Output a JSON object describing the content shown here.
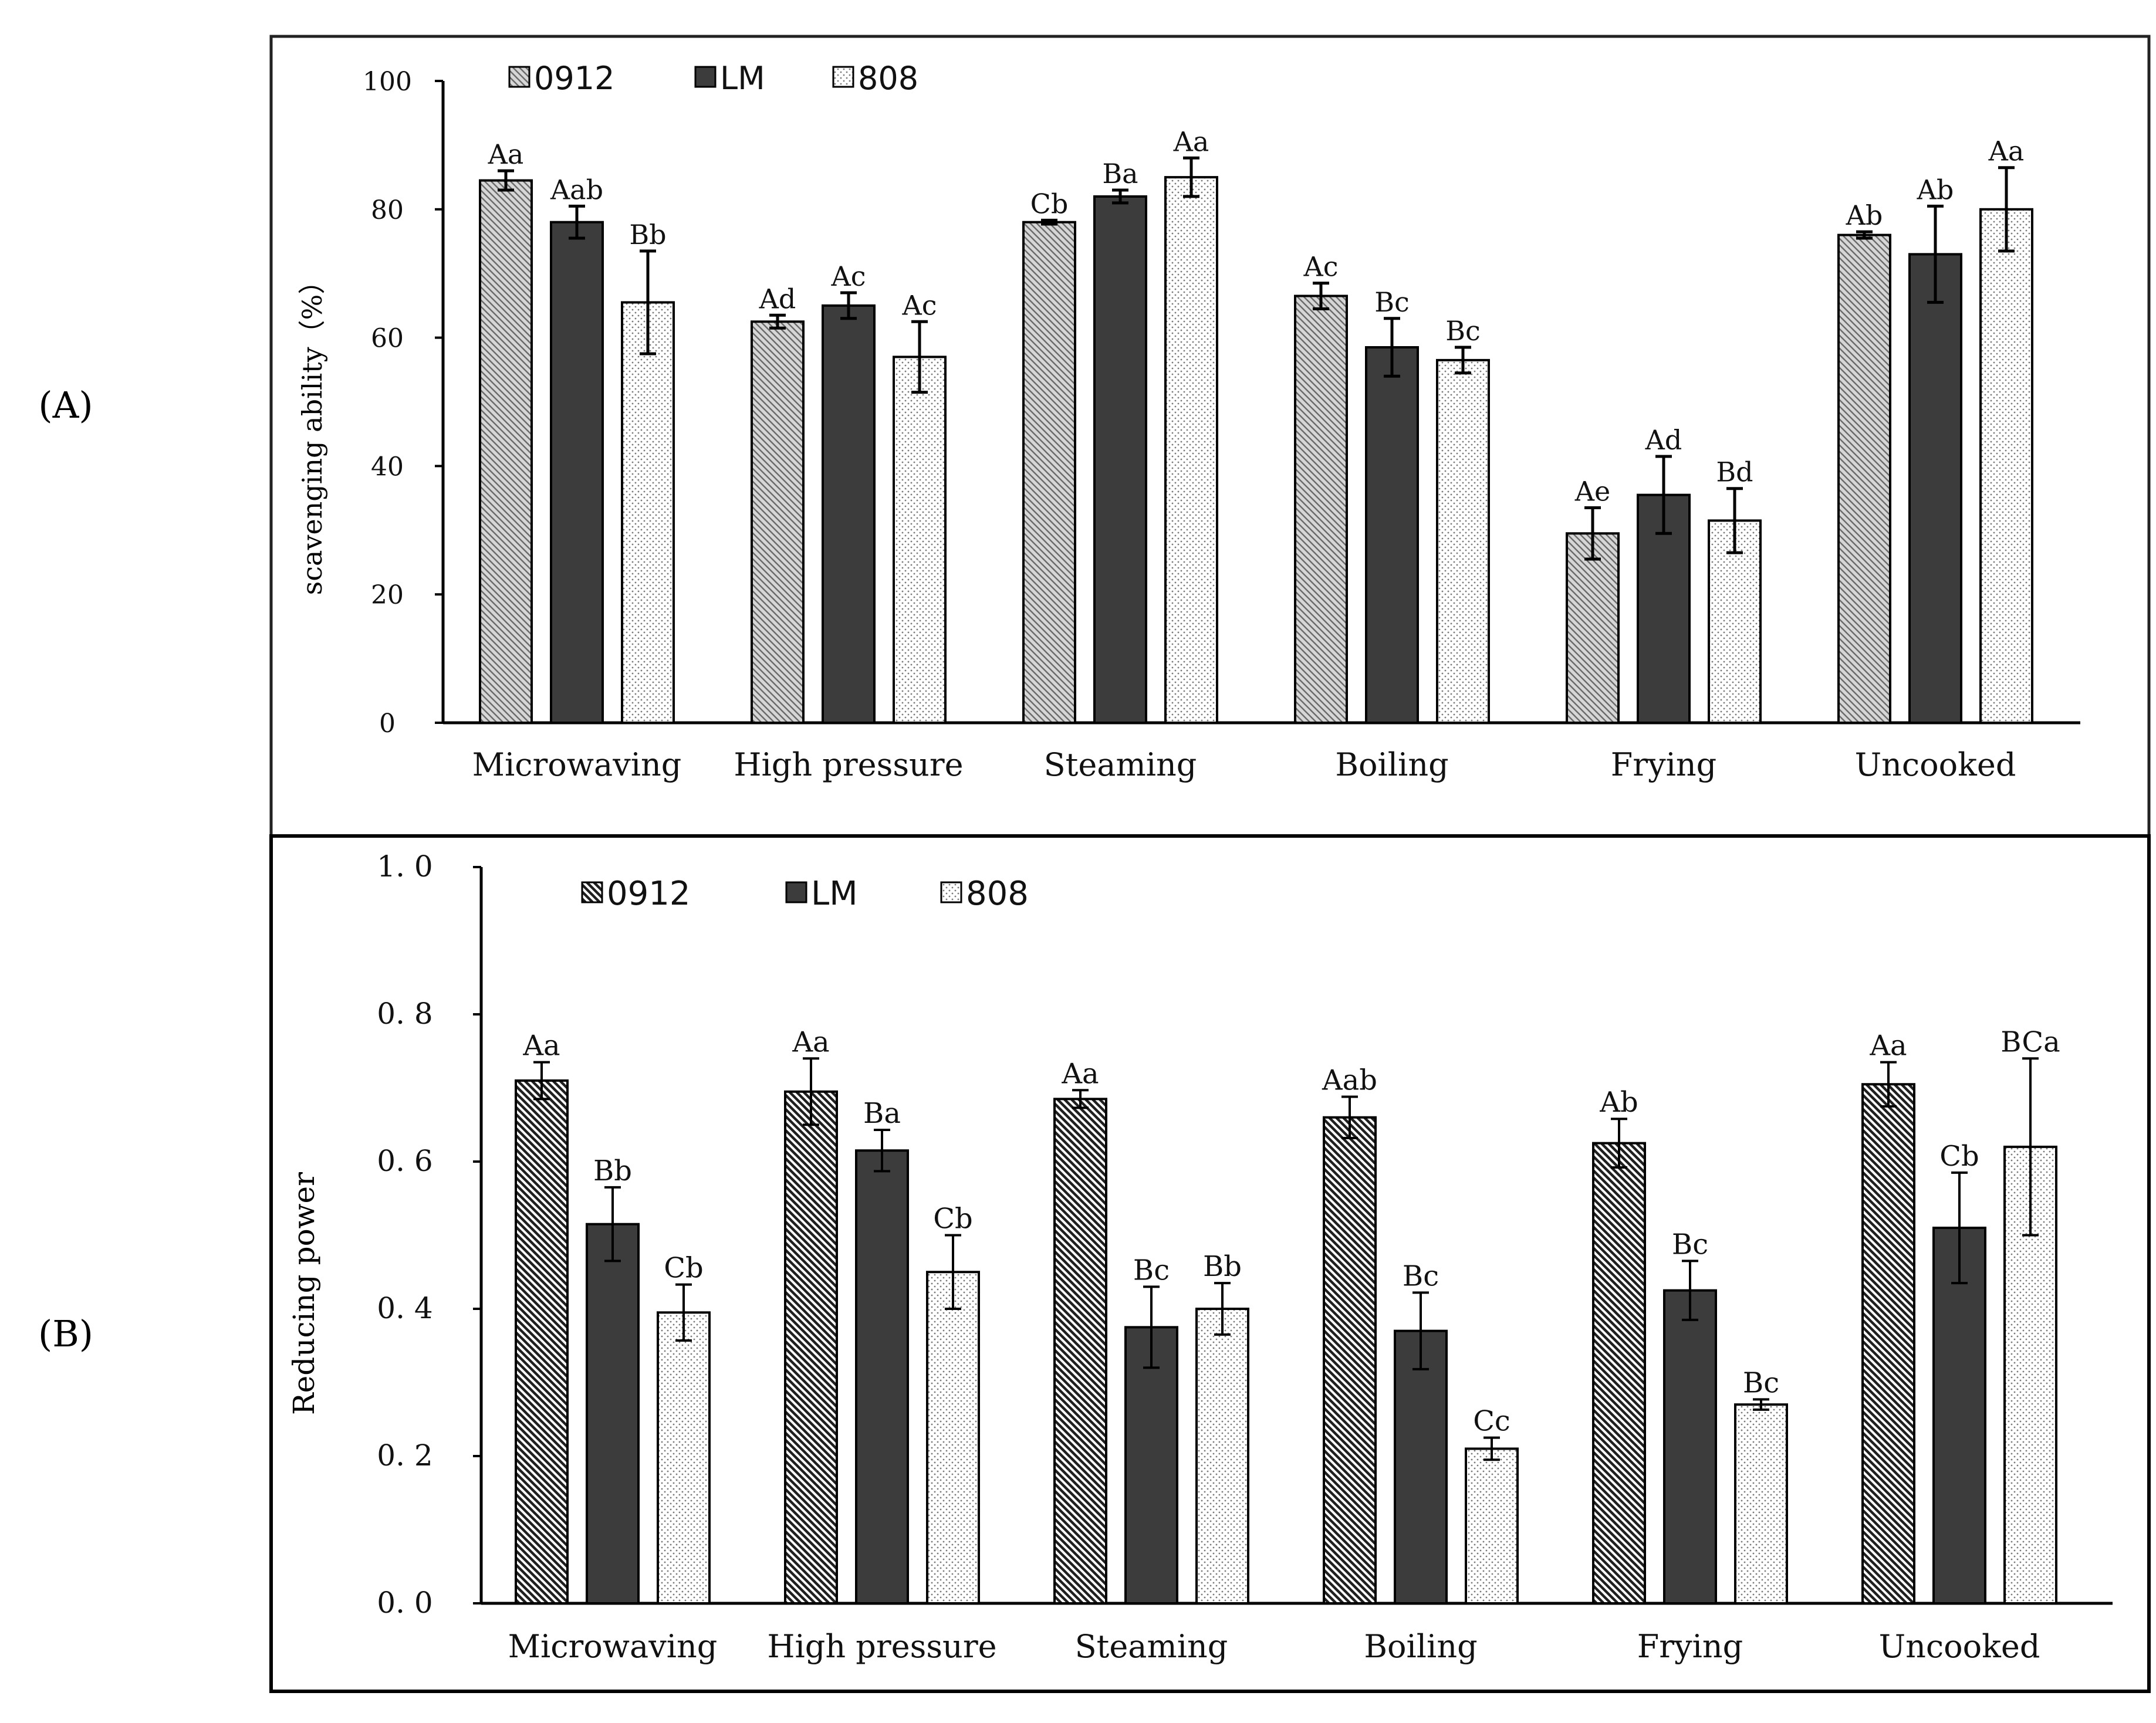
{
  "panel_labels": [
    "(A)",
    "(B)"
  ],
  "colors": {
    "series_0912": "#c9c9c9",
    "series_LM": "#3c3c3c",
    "series_808": "#f4f4f4",
    "axis": "#000000"
  },
  "chart_data": [
    {
      "type": "bar",
      "panel": "A",
      "title": "",
      "xlabel": "",
      "ylabel": "scavenging ability（%）",
      "ylim": [
        0,
        100
      ],
      "yticks": [
        "0",
        "20",
        "40",
        "60",
        "80",
        "100"
      ],
      "categories": [
        "Microwaving",
        "High pressure",
        "Steaming",
        "Boiling",
        "Frying",
        "Uncooked"
      ],
      "legend": [
        "0912",
        "LM",
        "808"
      ],
      "legend_position": "top-left",
      "series": [
        {
          "name": "0912",
          "pattern": "hatch",
          "values": [
            84.5,
            62.5,
            78.0,
            66.5,
            29.5,
            76.0
          ],
          "errors": [
            1.5,
            1.0,
            0.3,
            2.0,
            4.0,
            0.5
          ],
          "labels": [
            "Aa",
            "Ad",
            "Cb",
            "Ac",
            "Ae",
            "Ab"
          ]
        },
        {
          "name": "LM",
          "pattern": "solid",
          "values": [
            78.0,
            65.0,
            82.0,
            58.5,
            35.5,
            73.0
          ],
          "errors": [
            2.5,
            2.0,
            1.0,
            4.5,
            6.0,
            7.5
          ],
          "labels": [
            "Aab",
            "Ac",
            "Ba",
            "Bc",
            "Ad",
            "Ab"
          ]
        },
        {
          "name": "808",
          "pattern": "dots",
          "values": [
            65.5,
            57.0,
            85.0,
            56.5,
            31.5,
            80.0
          ],
          "errors": [
            8.0,
            5.5,
            3.0,
            2.0,
            5.0,
            6.5
          ],
          "labels": [
            "Bb",
            "Ac",
            "Aa",
            "Bc",
            "Bd",
            "Aa"
          ]
        }
      ]
    },
    {
      "type": "bar",
      "panel": "B",
      "title": "",
      "xlabel": "",
      "ylabel": "Reducing power",
      "ylim": [
        0,
        1.0
      ],
      "yticks": [
        "0. 0",
        "0. 2",
        "0. 4",
        "0. 6",
        "0. 8",
        "1. 0"
      ],
      "categories": [
        "Microwaving",
        "High pressure",
        "Steaming",
        "Boiling",
        "Frying",
        "Uncooked"
      ],
      "legend": [
        "0912",
        "LM",
        "808"
      ],
      "legend_position": "top-left",
      "series": [
        {
          "name": "0912",
          "pattern": "hatch",
          "values": [
            0.71,
            0.695,
            0.685,
            0.66,
            0.625,
            0.705
          ],
          "errors": [
            0.025,
            0.045,
            0.012,
            0.028,
            0.033,
            0.03
          ],
          "labels": [
            "Aa",
            "Aa",
            "Aa",
            "Aab",
            "Ab",
            "Aa"
          ]
        },
        {
          "name": "LM",
          "pattern": "solid",
          "values": [
            0.515,
            0.615,
            0.375,
            0.37,
            0.425,
            0.51
          ],
          "errors": [
            0.05,
            0.028,
            0.055,
            0.052,
            0.04,
            0.075
          ],
          "labels": [
            "Bb",
            "Ba",
            "Bc",
            "Bc",
            "Bc",
            "Cb"
          ]
        },
        {
          "name": "808",
          "pattern": "dots",
          "values": [
            0.395,
            0.45,
            0.4,
            0.21,
            0.27,
            0.62
          ],
          "errors": [
            0.038,
            0.05,
            0.035,
            0.015,
            0.007,
            0.12
          ],
          "labels": [
            "Cb",
            "Cb",
            "Bb",
            "Cc",
            "Bc",
            "BCa"
          ]
        }
      ]
    }
  ]
}
